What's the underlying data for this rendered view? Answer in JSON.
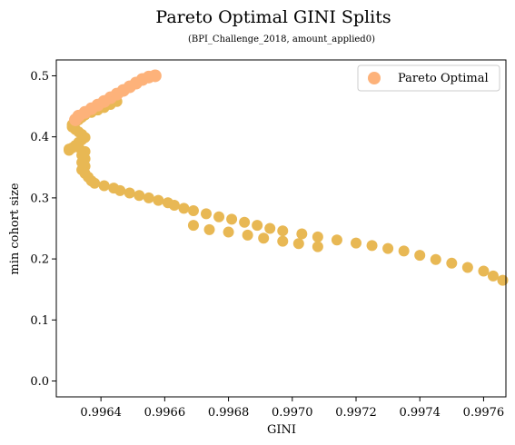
{
  "chart_data": {
    "type": "scatter",
    "title": "Pareto Optimal GINI Splits",
    "subtitle": "(BPI_Challenge_2018, amount_applied0)",
    "xlabel": "GINI",
    "ylabel": "min cohort size",
    "xlim": [
      0.99626,
      0.99767
    ],
    "ylim": [
      -0.026,
      0.526
    ],
    "xticks": [
      0.9964,
      0.9966,
      0.9968,
      0.997,
      0.9972,
      0.9974,
      0.9976
    ],
    "xtick_labels": [
      "0.9964",
      "0.9966",
      "0.9968",
      "0.9970",
      "0.9972",
      "0.9974",
      "0.9976"
    ],
    "yticks": [
      0.0,
      0.1,
      0.2,
      0.3,
      0.4,
      0.5
    ],
    "ytick_labels": [
      "0.0",
      "0.1",
      "0.2",
      "0.3",
      "0.4",
      "0.5"
    ],
    "grid": false,
    "legend_position": "top-right",
    "series": [
      {
        "name": "",
        "color": "#e8b854",
        "points": [
          [
            0.9963,
            0.378
          ],
          [
            0.99631,
            0.382
          ],
          [
            0.99632,
            0.386
          ],
          [
            0.99633,
            0.391
          ],
          [
            0.99634,
            0.395
          ],
          [
            0.99635,
            0.399
          ],
          [
            0.99634,
            0.404
          ],
          [
            0.99633,
            0.408
          ],
          [
            0.99632,
            0.412
          ],
          [
            0.99631,
            0.416
          ],
          [
            0.99631,
            0.42
          ],
          [
            0.99632,
            0.424
          ],
          [
            0.99633,
            0.428
          ],
          [
            0.99634,
            0.432
          ],
          [
            0.99635,
            0.436
          ],
          [
            0.99637,
            0.44
          ],
          [
            0.99639,
            0.444
          ],
          [
            0.99641,
            0.448
          ],
          [
            0.99643,
            0.453
          ],
          [
            0.99645,
            0.458
          ],
          [
            0.9963,
            0.38
          ],
          [
            0.99633,
            0.383
          ],
          [
            0.99635,
            0.376
          ],
          [
            0.99634,
            0.37
          ],
          [
            0.99635,
            0.364
          ],
          [
            0.99634,
            0.358
          ],
          [
            0.99635,
            0.352
          ],
          [
            0.99634,
            0.346
          ],
          [
            0.99635,
            0.34
          ],
          [
            0.99636,
            0.334
          ],
          [
            0.99637,
            0.328
          ],
          [
            0.99638,
            0.324
          ],
          [
            0.99641,
            0.32
          ],
          [
            0.99644,
            0.316
          ],
          [
            0.99646,
            0.312
          ],
          [
            0.99649,
            0.308
          ],
          [
            0.99652,
            0.304
          ],
          [
            0.99655,
            0.3
          ],
          [
            0.99658,
            0.296
          ],
          [
            0.99661,
            0.292
          ],
          [
            0.99663,
            0.288
          ],
          [
            0.99666,
            0.283
          ],
          [
            0.99669,
            0.279
          ],
          [
            0.99673,
            0.274
          ],
          [
            0.99677,
            0.269
          ],
          [
            0.99681,
            0.265
          ],
          [
            0.99685,
            0.26
          ],
          [
            0.99689,
            0.255
          ],
          [
            0.99693,
            0.25
          ],
          [
            0.99697,
            0.246
          ],
          [
            0.99703,
            0.241
          ],
          [
            0.99708,
            0.236
          ],
          [
            0.99714,
            0.231
          ],
          [
            0.9972,
            0.226
          ],
          [
            0.99725,
            0.222
          ],
          [
            0.9973,
            0.217
          ],
          [
            0.99735,
            0.213
          ],
          [
            0.9974,
            0.206
          ],
          [
            0.99745,
            0.199
          ],
          [
            0.9975,
            0.193
          ],
          [
            0.99755,
            0.186
          ],
          [
            0.9976,
            0.18
          ],
          [
            0.99763,
            0.172
          ],
          [
            0.99766,
            0.165
          ],
          [
            0.99669,
            0.255
          ],
          [
            0.99674,
            0.248
          ],
          [
            0.9968,
            0.244
          ],
          [
            0.99686,
            0.239
          ],
          [
            0.99691,
            0.234
          ],
          [
            0.99697,
            0.229
          ],
          [
            0.99702,
            0.225
          ],
          [
            0.99708,
            0.22
          ]
        ]
      },
      {
        "name": "Pareto Optimal",
        "color": "#fdb27a",
        "points": [
          [
            0.99632,
            0.428
          ],
          [
            0.99633,
            0.434
          ],
          [
            0.99635,
            0.44
          ],
          [
            0.99637,
            0.446
          ],
          [
            0.99639,
            0.452
          ],
          [
            0.99641,
            0.458
          ],
          [
            0.99643,
            0.464
          ],
          [
            0.99645,
            0.47
          ],
          [
            0.99647,
            0.476
          ],
          [
            0.99649,
            0.482
          ],
          [
            0.99651,
            0.488
          ],
          [
            0.99653,
            0.494
          ],
          [
            0.99655,
            0.498
          ],
          [
            0.99657,
            0.5
          ]
        ]
      }
    ]
  }
}
